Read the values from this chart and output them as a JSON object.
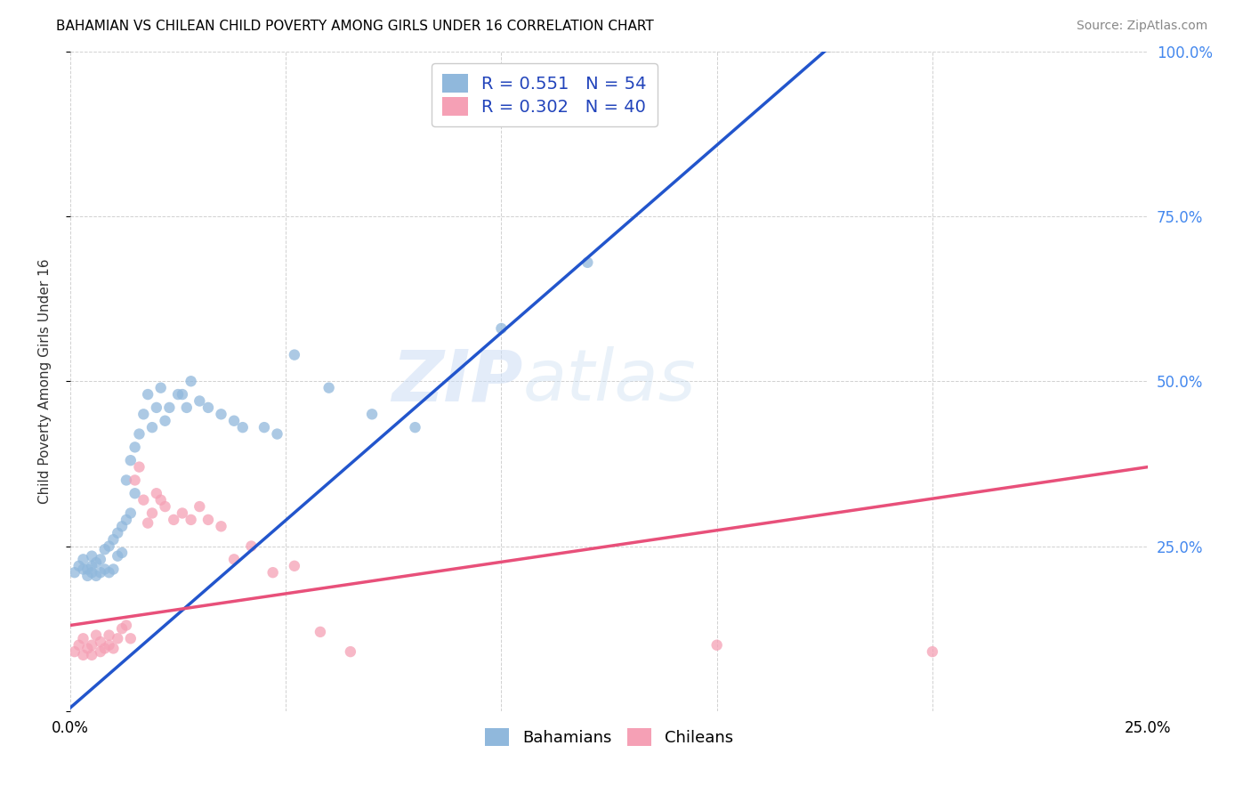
{
  "title": "BAHAMIAN VS CHILEAN CHILD POVERTY AMONG GIRLS UNDER 16 CORRELATION CHART",
  "source": "Source: ZipAtlas.com",
  "ylabel": "Child Poverty Among Girls Under 16",
  "x_min": 0.0,
  "x_max": 0.25,
  "y_min": 0.0,
  "y_max": 1.0,
  "x_tick_positions": [
    0.0,
    0.05,
    0.1,
    0.15,
    0.2,
    0.25
  ],
  "x_tick_labels": [
    "0.0%",
    "",
    "",
    "",
    "",
    "25.0%"
  ],
  "y_tick_positions": [
    0.0,
    0.25,
    0.5,
    0.75,
    1.0
  ],
  "y_tick_labels_right": [
    "",
    "25.0%",
    "50.0%",
    "75.0%",
    "100.0%"
  ],
  "bahamian_color": "#90b8dc",
  "chilean_color": "#f5a0b5",
  "regression_blue": "#2255cc",
  "regression_pink": "#e8507a",
  "regression_dashed_color": "#aaaaaa",
  "R_blue": 0.551,
  "N_blue": 54,
  "R_pink": 0.302,
  "N_pink": 40,
  "watermark": "ZIPatlas",
  "blue_line_x0": 0.0,
  "blue_line_y0": 0.005,
  "blue_line_x1": 0.175,
  "blue_line_y1": 1.0,
  "blue_line_dash_x0": 0.175,
  "blue_line_dash_y0": 1.0,
  "blue_line_dash_x1": 0.25,
  "blue_line_dash_y1": 1.02,
  "pink_line_x0": 0.0,
  "pink_line_y0": 0.13,
  "pink_line_x1": 0.25,
  "pink_line_y1": 0.37,
  "bahamian_x": [
    0.001,
    0.002,
    0.003,
    0.003,
    0.004,
    0.004,
    0.005,
    0.005,
    0.005,
    0.006,
    0.006,
    0.007,
    0.007,
    0.008,
    0.008,
    0.009,
    0.009,
    0.01,
    0.01,
    0.011,
    0.011,
    0.012,
    0.012,
    0.013,
    0.013,
    0.014,
    0.014,
    0.015,
    0.015,
    0.016,
    0.017,
    0.018,
    0.019,
    0.02,
    0.021,
    0.022,
    0.023,
    0.025,
    0.026,
    0.027,
    0.028,
    0.03,
    0.032,
    0.035,
    0.038,
    0.04,
    0.045,
    0.048,
    0.052,
    0.06,
    0.07,
    0.08,
    0.1,
    0.12
  ],
  "bahamian_y": [
    0.21,
    0.22,
    0.215,
    0.23,
    0.205,
    0.215,
    0.21,
    0.22,
    0.235,
    0.205,
    0.225,
    0.21,
    0.23,
    0.215,
    0.245,
    0.21,
    0.25,
    0.215,
    0.26,
    0.235,
    0.27,
    0.24,
    0.28,
    0.29,
    0.35,
    0.3,
    0.38,
    0.33,
    0.4,
    0.42,
    0.45,
    0.48,
    0.43,
    0.46,
    0.49,
    0.44,
    0.46,
    0.48,
    0.48,
    0.46,
    0.5,
    0.47,
    0.46,
    0.45,
    0.44,
    0.43,
    0.43,
    0.42,
    0.54,
    0.49,
    0.45,
    0.43,
    0.58,
    0.68
  ],
  "chilean_x": [
    0.001,
    0.002,
    0.003,
    0.003,
    0.004,
    0.005,
    0.005,
    0.006,
    0.007,
    0.007,
    0.008,
    0.009,
    0.009,
    0.01,
    0.011,
    0.012,
    0.013,
    0.014,
    0.015,
    0.016,
    0.017,
    0.018,
    0.019,
    0.02,
    0.021,
    0.022,
    0.024,
    0.026,
    0.028,
    0.03,
    0.032,
    0.035,
    0.038,
    0.042,
    0.047,
    0.052,
    0.058,
    0.065,
    0.15,
    0.2
  ],
  "chilean_y": [
    0.09,
    0.1,
    0.085,
    0.11,
    0.095,
    0.085,
    0.1,
    0.115,
    0.09,
    0.105,
    0.095,
    0.1,
    0.115,
    0.095,
    0.11,
    0.125,
    0.13,
    0.11,
    0.35,
    0.37,
    0.32,
    0.285,
    0.3,
    0.33,
    0.32,
    0.31,
    0.29,
    0.3,
    0.29,
    0.31,
    0.29,
    0.28,
    0.23,
    0.25,
    0.21,
    0.22,
    0.12,
    0.09,
    0.1,
    0.09
  ]
}
